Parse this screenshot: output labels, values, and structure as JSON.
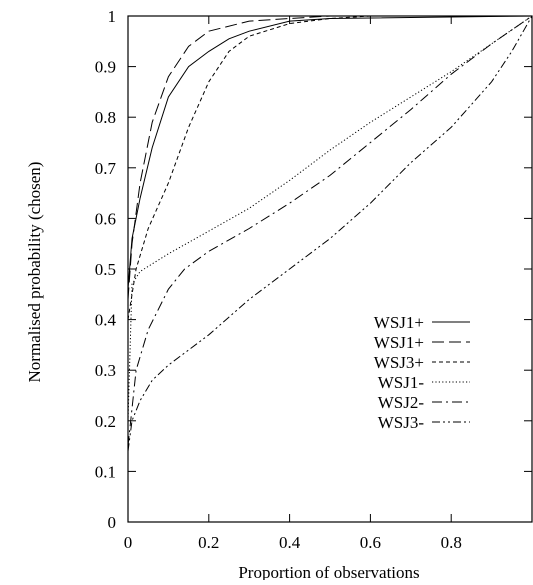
{
  "chart_data": {
    "type": "line",
    "title": "",
    "xlabel": "Proportion of observations",
    "ylabel": "Normalised probability (chosen)",
    "xlim": [
      0,
      1
    ],
    "ylim": [
      0,
      1
    ],
    "xticks": [
      0,
      0.2,
      0.4,
      0.6,
      0.8
    ],
    "xtick_labels": [
      "0",
      "0.2",
      "0.4",
      "0.6",
      "0.8"
    ],
    "yticks": [
      0,
      0.1,
      0.2,
      0.3,
      0.4,
      0.5,
      0.6,
      0.7,
      0.8,
      0.9,
      1
    ],
    "ytick_labels": [
      "0",
      "0.1",
      "0.2",
      "0.3",
      "0.4",
      "0.5",
      "0.6",
      "0.7",
      "0.8",
      "0.9",
      "1"
    ],
    "grid": false,
    "legend_position": "lower-right",
    "series": [
      {
        "name": "WSJ1+",
        "dash": "solid",
        "x": [
          0,
          0.01,
          0.03,
          0.06,
          0.1,
          0.15,
          0.2,
          0.25,
          0.3,
          0.4,
          0.5,
          1.0
        ],
        "y": [
          0.46,
          0.56,
          0.64,
          0.74,
          0.84,
          0.9,
          0.93,
          0.955,
          0.97,
          0.99,
          0.995,
          1.0
        ]
      },
      {
        "name": "WSJ1+",
        "dash": "long-dash",
        "x": [
          0,
          0.01,
          0.03,
          0.06,
          0.1,
          0.15,
          0.2,
          0.3,
          0.4,
          0.5,
          1.0
        ],
        "y": [
          0.44,
          0.55,
          0.67,
          0.79,
          0.88,
          0.94,
          0.97,
          0.99,
          0.995,
          1.0,
          1.0
        ]
      },
      {
        "name": "WSJ3+",
        "dash": "short-dash",
        "x": [
          0,
          0.02,
          0.05,
          0.1,
          0.15,
          0.2,
          0.25,
          0.3,
          0.4,
          0.5,
          0.6,
          1.0
        ],
        "y": [
          0.4,
          0.5,
          0.58,
          0.67,
          0.78,
          0.87,
          0.93,
          0.96,
          0.985,
          0.995,
          1.0,
          1.0
        ]
      },
      {
        "name": "WSJ1-",
        "dash": "dotted",
        "x": [
          0,
          0.01,
          0.03,
          0.06,
          0.1,
          0.2,
          0.3,
          0.4,
          0.5,
          0.6,
          0.7,
          0.8,
          0.9,
          1.0
        ],
        "y": [
          0.2,
          0.47,
          0.495,
          0.51,
          0.53,
          0.575,
          0.62,
          0.675,
          0.735,
          0.79,
          0.84,
          0.89,
          0.945,
          1.0
        ]
      },
      {
        "name": "WSJ2-",
        "dash": "dash-dot",
        "x": [
          0,
          0.02,
          0.05,
          0.1,
          0.14,
          0.2,
          0.3,
          0.4,
          0.5,
          0.6,
          0.7,
          0.8,
          0.9,
          1.0
        ],
        "y": [
          0.15,
          0.3,
          0.38,
          0.46,
          0.5,
          0.535,
          0.58,
          0.63,
          0.685,
          0.75,
          0.815,
          0.885,
          0.945,
          1.0
        ]
      },
      {
        "name": "WSJ3-",
        "dash": "dash-dot-dot",
        "x": [
          0,
          0.01,
          0.03,
          0.06,
          0.1,
          0.15,
          0.2,
          0.3,
          0.4,
          0.5,
          0.6,
          0.7,
          0.8,
          0.9,
          0.95,
          1.0
        ],
        "y": [
          0.14,
          0.2,
          0.24,
          0.28,
          0.31,
          0.34,
          0.37,
          0.44,
          0.5,
          0.56,
          0.63,
          0.71,
          0.78,
          0.87,
          0.93,
          1.0
        ]
      }
    ]
  }
}
